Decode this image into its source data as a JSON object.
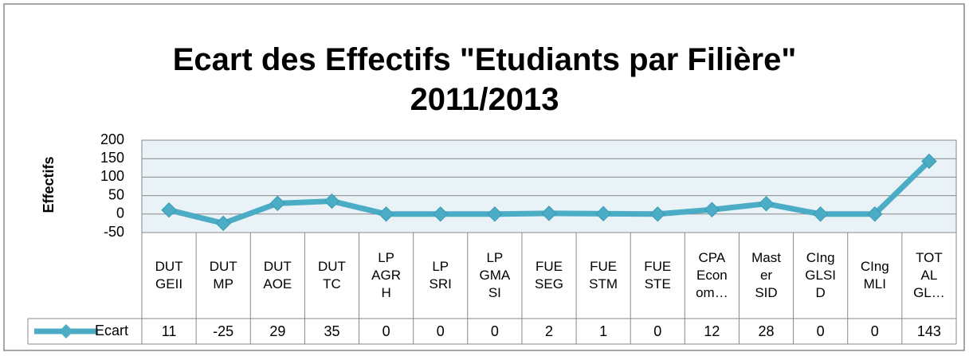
{
  "chart_data": {
    "type": "line",
    "title": "Ecart des Effectifs \"Etudiants par Filière\"\n2011/2013",
    "y_label": "Effectifs",
    "categories": [
      "DUT\nGEII",
      "DUT\nMP",
      "DUT\nAOE",
      "DUT\nTC",
      "LP\nAGR\nH",
      "LP\nSRI",
      "LP\nGMA\nSI",
      "FUE\nSEG",
      "FUE\nSTM",
      "FUE\nSTE",
      "CPA\nEcon\nom…",
      "Mast\ner\nSID",
      "CIng\nGLSI\nD",
      "CIng\nMLI",
      "TOT\nAL\nGL…"
    ],
    "series": [
      {
        "name": "Ecart",
        "color": "#4bacc6",
        "values": [
          11,
          -25,
          29,
          35,
          0,
          0,
          0,
          2,
          1,
          0,
          12,
          28,
          0,
          0,
          143
        ]
      }
    ],
    "ylim": [
      -50,
      200
    ],
    "yticks": [
      -50,
      0,
      50,
      100,
      150,
      200
    ],
    "grid": true
  }
}
